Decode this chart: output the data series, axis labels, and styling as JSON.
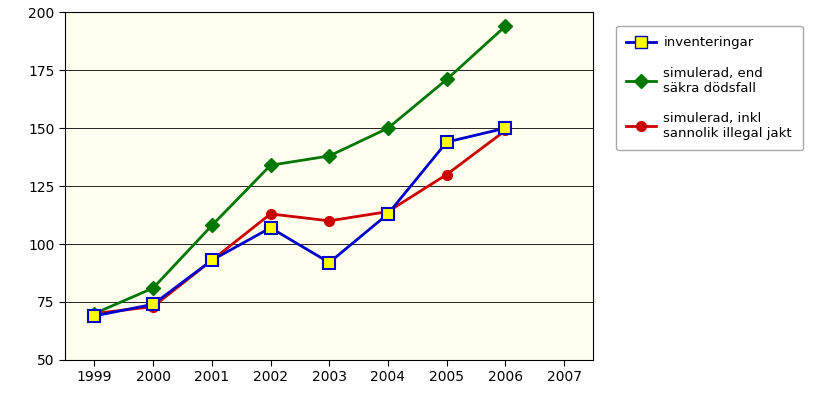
{
  "years": [
    1999,
    2000,
    2001,
    2002,
    2003,
    2004,
    2005,
    2006
  ],
  "inventeringar": [
    69,
    74,
    93,
    107,
    92,
    113,
    144,
    150
  ],
  "simulerad_end": [
    70,
    81,
    108,
    134,
    138,
    150,
    171,
    194
  ],
  "simulerad_inkl": [
    70,
    73,
    93,
    113,
    110,
    114,
    130,
    149
  ],
  "line_colors": {
    "inventeringar": "#0000cc",
    "simulerad_end": "#007700",
    "simulerad_inkl": "#cc0000"
  },
  "marker_colors": {
    "inventeringar": "#ffff00",
    "simulerad_end": "#007700",
    "simulerad_inkl": "#cc0000"
  },
  "legend_labels": {
    "inventeringar": "inventeringar",
    "simulerad_end": "simulerad, end\nsäkra dödsfall",
    "simulerad_inkl": "simulerad, inkl\nsannolik illegal jakt"
  },
  "xlim": [
    1998.5,
    2007.5
  ],
  "ylim": [
    50,
    200
  ],
  "yticks": [
    50,
    75,
    100,
    125,
    150,
    175,
    200
  ],
  "xticks": [
    1999,
    2000,
    2001,
    2002,
    2003,
    2004,
    2005,
    2006,
    2007
  ],
  "background_color": "#fffff0",
  "fig_background": "#ffffff",
  "grid_color": "#000000"
}
